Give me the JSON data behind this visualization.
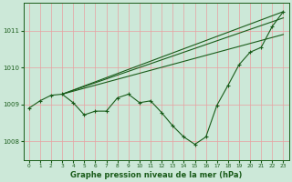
{
  "bg_color": "#cce8d8",
  "grid_color": "#e8a0a0",
  "line_color": "#1a5c1a",
  "title": "Graphe pression niveau de la mer (hPa)",
  "ylim": [
    1007.5,
    1011.75
  ],
  "xlim": [
    -0.5,
    23.5
  ],
  "yticks": [
    1008,
    1009,
    1010,
    1011
  ],
  "xticks": [
    0,
    1,
    2,
    3,
    4,
    5,
    6,
    7,
    8,
    9,
    10,
    11,
    12,
    13,
    14,
    15,
    16,
    17,
    18,
    19,
    20,
    21,
    22,
    23
  ],
  "line1_x": [
    3,
    23
  ],
  "line1_y": [
    1009.28,
    1011.52
  ],
  "line2_x": [
    3,
    23
  ],
  "line2_y": [
    1009.28,
    1011.35
  ],
  "line3_x": [
    3,
    23
  ],
  "line3_y": [
    1009.28,
    1010.9
  ],
  "line4": {
    "x": [
      0,
      1,
      2,
      3,
      4,
      5,
      6,
      7,
      8,
      9,
      10,
      11,
      12,
      13,
      14,
      15,
      16,
      17,
      18,
      19,
      20,
      21,
      22,
      23
    ],
    "y": [
      1008.9,
      1009.1,
      1009.25,
      1009.28,
      1009.05,
      1008.72,
      1008.82,
      1008.82,
      1009.18,
      1009.28,
      1009.05,
      1009.1,
      1008.78,
      1008.42,
      1008.12,
      1007.92,
      1008.12,
      1008.98,
      1009.52,
      1010.08,
      1010.42,
      1010.55,
      1011.12,
      1011.52
    ]
  }
}
